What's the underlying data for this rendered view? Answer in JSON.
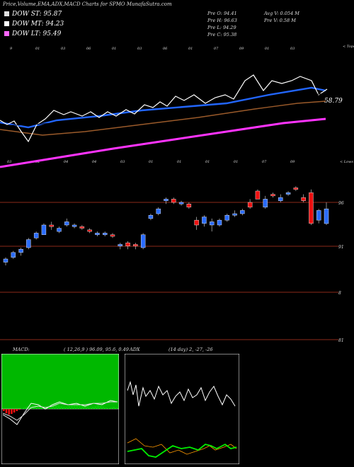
{
  "header": {
    "title": "Price,Volume,EMA,ADX,MACD Charts for SPMO MunafaSutra.com"
  },
  "legend": [
    {
      "label": "DOW ST: 95.87",
      "color": "#e0e0e0"
    },
    {
      "label": "DOW MT: 94.23",
      "color": "#ffffff"
    },
    {
      "label": "DOW LT: 95.49",
      "color": "#ff66ff"
    }
  ],
  "stats": {
    "pre_o": "Pre O: 94.41",
    "pre_h": "Pre H: 96.63",
    "pre_l": "Pre L: 94.29",
    "pre_c": "Pre C: 95.38",
    "avg_v": "Avg V: 0.054 M",
    "pre_v": "Pre V: 0.58 M"
  },
  "ema_panel": {
    "top_label": "< Tops",
    "value_label": "58.79",
    "top_ticks": [
      "9",
      "01",
      "03",
      "06",
      "01",
      "03",
      "06",
      "01",
      "07",
      "09",
      "01",
      "03"
    ],
    "bottom_ticks": [
      "03",
      "02",
      "04",
      "04",
      "03",
      "01",
      "01",
      "01",
      "01",
      "07",
      "09"
    ]
  },
  "price_panel": {
    "top_label": "< Lows",
    "levels": [
      "96",
      "91",
      "8",
      "81"
    ]
  },
  "macd_panel": {
    "label": "MACD:",
    "params": "( 12,26,9 ) 96.09, 95.6, 0.49"
  },
  "adx_panel": {
    "label": "ADX",
    "params": "(14 day) 2, -27, -26"
  },
  "colors": {
    "up": "#2b6cff",
    "down": "#ee1111",
    "level_line": "#8b2a1a",
    "macd_bg": "#00b800",
    "lt_line": "#ff33ff",
    "st_line": "#2266ff",
    "mt_line": "#9a5a2a"
  },
  "chart_data": {
    "type": "candlestick",
    "title": "Price,Volume,EMA,ADX,MACD Charts for SPMO MunafaSutra.com",
    "candles": [
      {
        "o": 92.6,
        "h": 92.9,
        "l": 92.4,
        "c": 92.8
      },
      {
        "o": 92.9,
        "h": 93.3,
        "l": 92.8,
        "c": 93.2
      },
      {
        "o": 93.2,
        "h": 93.5,
        "l": 93.0,
        "c": 93.4
      },
      {
        "o": 93.5,
        "h": 94.1,
        "l": 93.4,
        "c": 94.0
      },
      {
        "o": 94.1,
        "h": 94.5,
        "l": 94.0,
        "c": 94.4
      },
      {
        "o": 94.3,
        "h": 95.0,
        "l": 94.3,
        "c": 94.9
      },
      {
        "o": 94.9,
        "h": 95.1,
        "l": 94.6,
        "c": 94.8
      },
      {
        "o": 94.5,
        "h": 94.8,
        "l": 94.4,
        "c": 94.7
      },
      {
        "o": 94.9,
        "h": 95.3,
        "l": 94.8,
        "c": 95.1
      },
      {
        "o": 94.8,
        "h": 95.0,
        "l": 94.7,
        "c": 94.9
      },
      {
        "o": 94.8,
        "h": 94.9,
        "l": 94.6,
        "c": 94.7
      },
      {
        "o": 94.6,
        "h": 94.7,
        "l": 94.4,
        "c": 94.5
      },
      {
        "o": 94.3,
        "h": 94.5,
        "l": 94.2,
        "c": 94.4
      },
      {
        "o": 94.3,
        "h": 94.5,
        "l": 94.2,
        "c": 94.4
      },
      {
        "o": 94.3,
        "h": 94.4,
        "l": 94.1,
        "c": 94.2
      },
      {
        "o": 93.6,
        "h": 93.8,
        "l": 93.4,
        "c": 93.7
      },
      {
        "o": 93.8,
        "h": 93.9,
        "l": 93.4,
        "c": 93.6
      },
      {
        "o": 93.7,
        "h": 93.8,
        "l": 93.4,
        "c": 93.6
      },
      {
        "o": 93.5,
        "h": 94.4,
        "l": 93.4,
        "c": 94.3
      },
      {
        "o": 95.3,
        "h": 95.6,
        "l": 95.2,
        "c": 95.5
      },
      {
        "o": 95.6,
        "h": 96.0,
        "l": 95.5,
        "c": 95.9
      },
      {
        "o": 96.4,
        "h": 96.6,
        "l": 96.2,
        "c": 96.5
      },
      {
        "o": 96.5,
        "h": 96.6,
        "l": 96.2,
        "c": 96.3
      },
      {
        "o": 96.2,
        "h": 96.4,
        "l": 96.1,
        "c": 96.3
      },
      {
        "o": 96.2,
        "h": 96.3,
        "l": 95.9,
        "c": 96.0
      },
      {
        "o": 95.2,
        "h": 95.4,
        "l": 94.6,
        "c": 94.9
      },
      {
        "o": 95.0,
        "h": 95.5,
        "l": 94.8,
        "c": 95.4
      },
      {
        "o": 94.9,
        "h": 95.3,
        "l": 94.5,
        "c": 95.1
      },
      {
        "o": 94.9,
        "h": 95.3,
        "l": 94.8,
        "c": 95.2
      },
      {
        "o": 95.2,
        "h": 95.6,
        "l": 95.1,
        "c": 95.5
      },
      {
        "o": 95.5,
        "h": 95.8,
        "l": 95.4,
        "c": 95.6
      },
      {
        "o": 95.6,
        "h": 95.9,
        "l": 95.5,
        "c": 95.8
      },
      {
        "o": 96.3,
        "h": 96.5,
        "l": 95.9,
        "c": 96.0
      },
      {
        "o": 97.0,
        "h": 97.1,
        "l": 96.5,
        "c": 96.5
      },
      {
        "o": 96.0,
        "h": 96.7,
        "l": 95.9,
        "c": 96.5
      },
      {
        "o": 96.8,
        "h": 96.9,
        "l": 96.6,
        "c": 96.7
      },
      {
        "o": 96.4,
        "h": 96.8,
        "l": 96.3,
        "c": 96.6
      },
      {
        "o": 96.8,
        "h": 97.0,
        "l": 96.7,
        "c": 96.9
      },
      {
        "o": 97.2,
        "h": 97.3,
        "l": 97.0,
        "c": 97.1
      },
      {
        "o": 96.6,
        "h": 96.8,
        "l": 96.3,
        "c": 96.4
      },
      {
        "o": 96.9,
        "h": 97.1,
        "l": 94.9,
        "c": 95.0
      },
      {
        "o": 95.2,
        "h": 95.9,
        "l": 95.0,
        "c": 95.8
      },
      {
        "o": 94.99,
        "h": 96.3,
        "l": 94.9,
        "c": 95.9
      }
    ],
    "levels": [
      96,
      91,
      8,
      81
    ],
    "ema": {
      "ST": 95.87,
      "MT": 94.23,
      "LT": 95.49
    },
    "macd": {
      "fast": 12,
      "slow": 26,
      "signal": 9,
      "values": [
        96.09,
        95.6,
        0.49
      ]
    },
    "adx": {
      "period": 14,
      "values": [
        2,
        -27,
        -26
      ]
    }
  }
}
